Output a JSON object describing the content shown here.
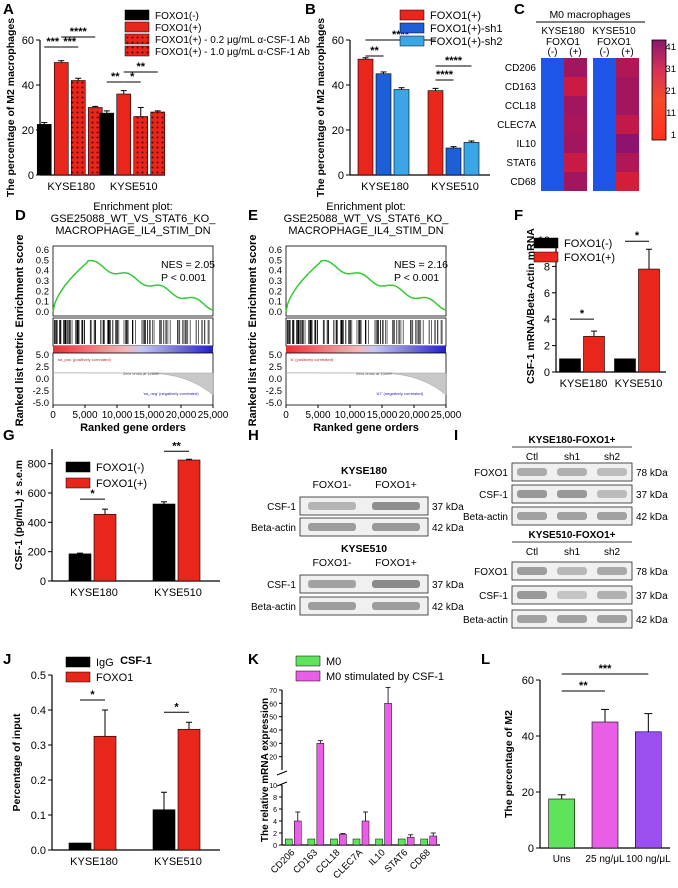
{
  "panels": {
    "A": {
      "letter": "A",
      "chart_data": {
        "type": "bar",
        "ylabel": "The percentage of M2 macrophages",
        "ylim": [
          0,
          60
        ],
        "yticks": [
          "0",
          "20",
          "40",
          "60"
        ],
        "categories": [
          "KYSE180",
          "KYSE510"
        ],
        "series": [
          {
            "name": "FOXO1(-)",
            "color": "#000000",
            "pattern": "solid",
            "values": [
              22.5,
              27.5
            ],
            "errors": [
              0.8,
              1.0
            ]
          },
          {
            "name": "FOXO1(+)",
            "color": "#e8261b",
            "pattern": "solid",
            "values": [
              50,
              36
            ],
            "errors": [
              0.8,
              1.5
            ]
          },
          {
            "name": "FOXO1(+) - 0.2 μg/mL α-CSF-1 Ab",
            "color": "#e8261b",
            "pattern": "dots",
            "values": [
              42,
              26
            ],
            "errors": [
              1.0,
              4.0
            ]
          },
          {
            "name": "FOXO1(+) - 1.0 μg/mL α-CSF-1 Ab",
            "color": "#e8261b",
            "pattern": "dots",
            "values": [
              30,
              28
            ],
            "errors": [
              0.5,
              0.5
            ]
          }
        ],
        "significance": [
          "***",
          "***",
          "****",
          "**",
          "*",
          "**"
        ]
      }
    },
    "B": {
      "letter": "B",
      "chart_data": {
        "type": "bar",
        "ylabel": "The percentage of M2 macrophages",
        "ylim": [
          0,
          60
        ],
        "yticks": [
          "0",
          "20",
          "40",
          "60"
        ],
        "categories": [
          "KYSE180",
          "KYSE510"
        ],
        "series": [
          {
            "name": "FOXO1(+)",
            "color": "#e8261b",
            "values": [
              51.5,
              37.5
            ],
            "errors": [
              0.6,
              1.0
            ]
          },
          {
            "name": "FOXO1(+)-sh1",
            "color": "#1d5fd6",
            "values": [
              45,
              12
            ],
            "errors": [
              0.8,
              0.6
            ]
          },
          {
            "name": "FOXO1(+)-sh2",
            "color": "#3aa6e8",
            "values": [
              38,
              14.5
            ],
            "errors": [
              0.8,
              0.6
            ]
          }
        ],
        "significance": [
          "****",
          "**",
          "****",
          "****"
        ]
      }
    },
    "C": {
      "letter": "C",
      "chart_data": {
        "type": "heatmap",
        "title": "M0 macrophages",
        "col_groups": [
          "KYSE180",
          "KYSE510"
        ],
        "foxo_label": "FOXO1",
        "col_labels": [
          "(-)",
          "(+)",
          "(-)",
          "(+)"
        ],
        "rows": [
          "CD206",
          "CD163",
          "CCL18",
          "CLEC7A",
          "IL10",
          "STAT6",
          "CD68"
        ],
        "values": [
          [
            1,
            38,
            1,
            36
          ],
          [
            1,
            31,
            1,
            38
          ],
          [
            1,
            38,
            1,
            38
          ],
          [
            1,
            37,
            1,
            33
          ],
          [
            1,
            38,
            1,
            41
          ],
          [
            1,
            32,
            1,
            36
          ],
          [
            1,
            38,
            1,
            29
          ]
        ],
        "scale_ticks": [
          "41",
          "31",
          "21",
          "11",
          "1"
        ],
        "scale_range": [
          1,
          41
        ]
      }
    },
    "D": {
      "letter": "D",
      "chart_data": {
        "type": "line",
        "title_lines": [
          "Enrichment plot:",
          "GSE25088_WT_VS_STAT6_KO_",
          "MACROPHAGE_IL4_STIM_DN"
        ],
        "ylabel_top": "Enrichment score",
        "ylabel_bottom": "Ranked list metric",
        "xlabel": "Ranked gene orders",
        "es_ticks": [
          "0.6",
          "0.5",
          "0.4",
          "0.3",
          "0.2",
          "0.1",
          "0.0"
        ],
        "metric_ticks": [
          "5.0",
          "2.5",
          "0.0",
          "-2.5",
          "-5.0"
        ],
        "xticks": [
          "0",
          "5,000",
          "10,000",
          "15,000",
          "20,000",
          "25,000"
        ],
        "nes": "NES = 2.05",
        "pval": "P < 0.001",
        "pos_label": "'na_pos' (positively correlated)",
        "neg_label": "'na_neg' (negatively correlated)",
        "zero_label": "Zero cross at 12888"
      }
    },
    "E": {
      "letter": "E",
      "chart_data": {
        "type": "line",
        "title_lines": [
          "Enrichment plot:",
          "GSE25088_WT_VS_STAT6_KO_",
          "MACROPHAGE_IL4_STIM_DN"
        ],
        "ylabel_top": "Enrichment score",
        "ylabel_bottom": "Ranked list metric",
        "xlabel": "Ranked gene orders",
        "es_ticks": [
          "0.6",
          "0.5",
          "0.4",
          "0.3",
          "0.2",
          "0.1",
          "0.0"
        ],
        "metric_ticks": [
          "5.0",
          "2.5",
          "0.0",
          "-2.5",
          "-5.0"
        ],
        "xticks": [
          "0",
          "5,000",
          "10,000",
          "15,000",
          "20,000",
          "25,000"
        ],
        "nes": "NES = 2.16",
        "pval": "P < 0.001",
        "pos_label": "'A' (positively correlated)",
        "neg_label": "'A7' (negatively correlated)",
        "zero_label": "Zero cross at 13309"
      }
    },
    "F": {
      "letter": "F",
      "chart_data": {
        "type": "bar",
        "ylabel": "CSF-1 mRNA/Beta-Actin mRNA",
        "ylim": [
          0,
          10
        ],
        "yticks": [
          "0",
          "2",
          "4",
          "6",
          "8",
          "10"
        ],
        "categories": [
          "KYSE180",
          "KYSE510"
        ],
        "series": [
          {
            "name": "FOXO1(-)",
            "color": "#000000",
            "values": [
              1,
              1
            ],
            "errors": [
              0,
              0
            ]
          },
          {
            "name": "FOXO1(+)",
            "color": "#e8261b",
            "values": [
              2.7,
              7.8
            ],
            "errors": [
              0.4,
              1.5
            ]
          }
        ],
        "significance": [
          "*",
          "*"
        ]
      }
    },
    "G": {
      "letter": "G",
      "chart_data": {
        "type": "bar",
        "ylabel": "CSF-1 (pg/mL) ± s.e.m",
        "ylim": [
          0,
          900
        ],
        "yticks": [
          "0",
          "200",
          "400",
          "600",
          "800"
        ],
        "categories": [
          "KYSE180",
          "KYSE510"
        ],
        "series": [
          {
            "name": "FOXO1(-)",
            "color": "#000000",
            "values": [
              185,
              525
            ],
            "errors": [
              5,
              15
            ]
          },
          {
            "name": "FOXO1(+)",
            "color": "#e8261b",
            "values": [
              455,
              825
            ],
            "errors": [
              35,
              5
            ]
          }
        ],
        "significance": [
          "*",
          "**"
        ]
      }
    },
    "H": {
      "letter": "H",
      "blocks": [
        {
          "title": "KYSE180",
          "cols": [
            "FOXO1-",
            "FOXO1+"
          ],
          "rows": [
            {
              "label": "CSF-1",
              "kda": "37 kDa"
            },
            {
              "label": "Beta-actin",
              "kda": "42 kDa"
            }
          ]
        },
        {
          "title": "KYSE510",
          "cols": [
            "FOXO1-",
            "FOXO1+"
          ],
          "rows": [
            {
              "label": "CSF-1",
              "kda": "37 kDa"
            },
            {
              "label": "Beta-actin",
              "kda": "42 kDa"
            }
          ]
        }
      ]
    },
    "I": {
      "letter": "I",
      "blocks": [
        {
          "title": "KYSE180-FOXO1+",
          "cols": [
            "Ctl",
            "sh1",
            "sh2"
          ],
          "rows": [
            {
              "label": "FOXO1",
              "kda": "78 kDa"
            },
            {
              "label": "CSF-1",
              "kda": "37 kDa"
            },
            {
              "label": "Beta-actin",
              "kda": "42 kDa"
            }
          ]
        },
        {
          "title": "KYSE510-FOXO1+",
          "cols": [
            "Ctl",
            "sh1",
            "sh2"
          ],
          "rows": [
            {
              "label": "FOXO1",
              "kda": "78 kDa"
            },
            {
              "label": "CSF-1",
              "kda": "37 kDa"
            },
            {
              "label": "Beta-actin",
              "kda": "42 kDa"
            }
          ]
        }
      ]
    },
    "J": {
      "letter": "J",
      "chart_data": {
        "type": "bar",
        "title": "CSF-1",
        "ylabel": "Percentage of input",
        "ylim": [
          0,
          0.5
        ],
        "yticks": [
          "0.0",
          "0.1",
          "0.2",
          "0.3",
          "0.4",
          "0.5"
        ],
        "categories": [
          "KYSE180",
          "KYSE510"
        ],
        "series": [
          {
            "name": "IgG",
            "color": "#000000",
            "values": [
              0.02,
              0.115
            ],
            "errors": [
              0,
              0.05
            ]
          },
          {
            "name": "FOXO1",
            "color": "#e8261b",
            "values": [
              0.325,
              0.345
            ],
            "errors": [
              0.075,
              0.02
            ]
          }
        ],
        "significance": [
          "*",
          "*"
        ]
      }
    },
    "K": {
      "letter": "K",
      "chart_data": {
        "type": "bar",
        "ylabel": "The relative mRNA expression",
        "yticks": [
          "0",
          "2",
          "4",
          "6",
          "8",
          "10",
          "20",
          "30",
          "40",
          "50",
          "60",
          "70"
        ],
        "categories": [
          "CD206",
          "CD163",
          "CCL18",
          "CLEC7A",
          "IL10",
          "STAT6",
          "CD68"
        ],
        "series": [
          {
            "name": "M0",
            "color": "#5fe35b",
            "values": [
              1,
              1,
              1,
              1,
              1,
              1,
              1
            ],
            "errors": [
              0,
              0,
              0,
              0,
              0,
              0,
              0
            ]
          },
          {
            "name": "M0 stimulated by CSF-1",
            "color": "#e85ee6",
            "values": [
              4.0,
              30,
              1.8,
              4.0,
              60,
              1.3,
              1.5
            ],
            "errors": [
              1.5,
              2,
              0.1,
              1.5,
              12,
              0.4,
              0.5
            ]
          }
        ]
      }
    },
    "L": {
      "letter": "L",
      "chart_data": {
        "type": "bar",
        "ylabel": "The percentage of M2",
        "ylim": [
          0,
          60
        ],
        "yticks": [
          "0",
          "20",
          "40",
          "60"
        ],
        "categories": [
          "Uns",
          "25 ng/μL",
          "100 ng/μL"
        ],
        "colors": [
          "#5fe35b",
          "#e85ee6",
          "#9b4ff0"
        ],
        "values": [
          17.5,
          45,
          41.5
        ],
        "errors": [
          1.5,
          4.5,
          6.5
        ],
        "significance": [
          "**",
          "***"
        ]
      }
    }
  }
}
